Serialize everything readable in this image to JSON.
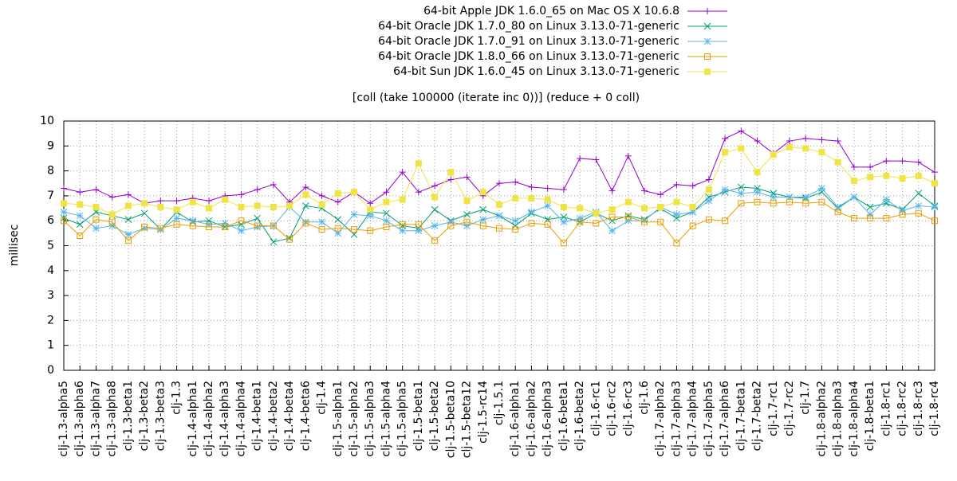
{
  "chart_data": {
    "type": "line",
    "title": "[coll (take 100000 (iterate inc 0))] (reduce + 0 coll)",
    "y_label": "millisec",
    "categories": [
      "clj-1.3-alpha5",
      "clj-1.3-alpha6",
      "clj-1.3-alpha7",
      "clj-1.3-alpha8",
      "clj-1.3-beta1",
      "clj-1.3-beta2",
      "clj-1.3-beta3",
      "clj-1.3",
      "clj-1.4-alpha1",
      "clj-1.4-alpha2",
      "clj-1.4-alpha3",
      "clj-1.4-alpha4",
      "clj-1.4-beta1",
      "clj-1.4-beta2",
      "clj-1.4-beta4",
      "clj-1.4-beta6",
      "clj-1.4",
      "clj-1.5-alpha1",
      "clj-1.5-alpha2",
      "clj-1.5-alpha3",
      "clj-1.5-alpha4",
      "clj-1.5-alpha5",
      "clj-1.5-beta1",
      "clj-1.5-beta2",
      "clj-1.5-beta10",
      "clj-1.5-beta12",
      "clj-1.5-rc14",
      "clj-1.5.1",
      "clj-1.6-alpha1",
      "clj-1.6-alpha2",
      "clj-1.6-alpha3",
      "clj-1.6-beta1",
      "clj-1.6-beta2",
      "clj-1.6-rc1",
      "clj-1.6-rc2",
      "clj-1.6-rc3",
      "clj-1.6",
      "clj-1.7-alpha2",
      "clj-1.7-alpha3",
      "clj-1.7-alpha4",
      "clj-1.7-alpha5",
      "clj-1.7-alpha6",
      "clj-1.7-beta1",
      "clj-1.7-beta2",
      "clj-1.7-rc1",
      "clj-1.7-rc2",
      "clj-1.7",
      "clj-1.8-alpha2",
      "clj-1.8-alpha3",
      "clj-1.8-alpha4",
      "clj-1.8-beta1",
      "clj-1.8-rc1",
      "clj-1.8-rc2",
      "clj-1.8-rc3",
      "clj-1.8-rc4"
    ],
    "series": [
      {
        "name": "64-bit Apple JDK 1.6.0_65 on Mac OS X 10.6.8",
        "color": "#9400d3",
        "marker": "plus",
        "values": [
          7.3,
          7.15,
          7.25,
          6.95,
          7.05,
          6.7,
          6.8,
          6.8,
          6.9,
          6.8,
          7.0,
          7.05,
          7.25,
          7.45,
          6.75,
          7.35,
          7.0,
          6.75,
          7.15,
          6.7,
          7.15,
          7.95,
          7.15,
          7.4,
          7.65,
          7.75,
          7.0,
          7.5,
          7.55,
          7.35,
          7.3,
          7.25,
          8.5,
          8.45,
          7.2,
          8.6,
          7.2,
          7.05,
          7.45,
          7.4,
          7.65,
          9.3,
          9.6,
          9.2,
          8.7,
          9.2,
          9.3,
          9.25,
          9.2,
          8.15,
          8.15,
          8.4,
          8.4,
          8.35,
          7.95
        ]
      },
      {
        "name": "64-bit Oracle JDK 1.7.0_80 on Linux 3.13.0-71-generic",
        "color": "#009e73",
        "marker": "cross",
        "values": [
          6.1,
          5.85,
          6.35,
          6.2,
          6.05,
          6.3,
          5.65,
          6.35,
          5.95,
          6.0,
          5.75,
          5.85,
          6.1,
          5.15,
          5.3,
          6.6,
          6.5,
          6.05,
          5.45,
          6.35,
          6.3,
          5.8,
          5.7,
          6.45,
          6.0,
          6.25,
          6.45,
          6.2,
          5.8,
          6.3,
          6.05,
          6.15,
          5.95,
          6.3,
          6.0,
          6.2,
          6.05,
          6.5,
          6.1,
          6.35,
          6.95,
          7.15,
          7.35,
          7.3,
          7.1,
          6.95,
          6.9,
          7.15,
          6.5,
          6.95,
          6.55,
          6.7,
          6.45,
          7.1,
          6.6
        ]
      },
      {
        "name": "64-bit Oracle JDK 1.7.0_91 on Linux 3.13.0-71-generic",
        "color": "#56b4e9",
        "marker": "star",
        "values": [
          6.35,
          6.2,
          5.7,
          5.8,
          5.45,
          5.7,
          5.65,
          6.1,
          6.0,
          5.85,
          5.9,
          5.6,
          5.75,
          5.8,
          6.55,
          5.95,
          5.95,
          5.5,
          6.25,
          6.2,
          6.0,
          5.6,
          5.6,
          5.8,
          5.95,
          5.8,
          6.05,
          6.2,
          6.0,
          6.35,
          6.6,
          5.95,
          6.1,
          6.35,
          5.6,
          6.0,
          6.0,
          6.55,
          6.25,
          6.35,
          6.8,
          7.25,
          7.1,
          7.15,
          6.95,
          6.95,
          6.95,
          7.3,
          6.55,
          6.95,
          6.25,
          6.85,
          6.4,
          6.6,
          6.55
        ]
      },
      {
        "name": "64-bit Oracle JDK 1.8.0_66 on Linux 3.13.0-71-generic",
        "color": "#e69f00",
        "marker": "open-square",
        "values": [
          6.0,
          5.4,
          6.05,
          5.95,
          5.2,
          5.75,
          5.7,
          5.85,
          5.8,
          5.75,
          5.75,
          6.0,
          5.8,
          5.8,
          5.25,
          5.9,
          5.65,
          5.7,
          5.65,
          5.6,
          5.75,
          5.85,
          5.85,
          5.2,
          5.8,
          5.95,
          5.8,
          5.7,
          5.65,
          5.9,
          5.85,
          5.1,
          5.95,
          5.9,
          6.15,
          6.15,
          5.95,
          5.95,
          5.1,
          5.8,
          6.05,
          6.0,
          6.7,
          6.75,
          6.7,
          6.75,
          6.7,
          6.75,
          6.35,
          6.1,
          6.1,
          6.1,
          6.25,
          6.3,
          6.0
        ]
      },
      {
        "name": "64-bit Sun JDK 1.6.0_45 on Linux 3.13.0-71-generic",
        "color": "#f0e442",
        "marker": "filled-square",
        "values": [
          6.7,
          6.65,
          6.55,
          6.25,
          6.6,
          6.7,
          6.55,
          6.45,
          6.75,
          6.5,
          6.85,
          6.55,
          6.6,
          6.55,
          6.6,
          7.05,
          6.65,
          7.1,
          7.15,
          6.45,
          6.75,
          6.85,
          8.3,
          6.95,
          7.95,
          6.8,
          7.15,
          6.65,
          6.9,
          6.9,
          6.85,
          6.55,
          6.5,
          6.3,
          6.45,
          6.75,
          6.5,
          6.55,
          6.75,
          6.55,
          7.25,
          8.75,
          8.9,
          7.95,
          8.65,
          8.95,
          8.9,
          8.75,
          8.35,
          7.6,
          7.75,
          7.8,
          7.7,
          7.8,
          7.5
        ]
      }
    ],
    "ylim": [
      0,
      10
    ],
    "yticks": [
      0,
      1,
      2,
      3,
      4,
      5,
      6,
      7,
      8,
      9,
      10
    ],
    "grid": true
  }
}
